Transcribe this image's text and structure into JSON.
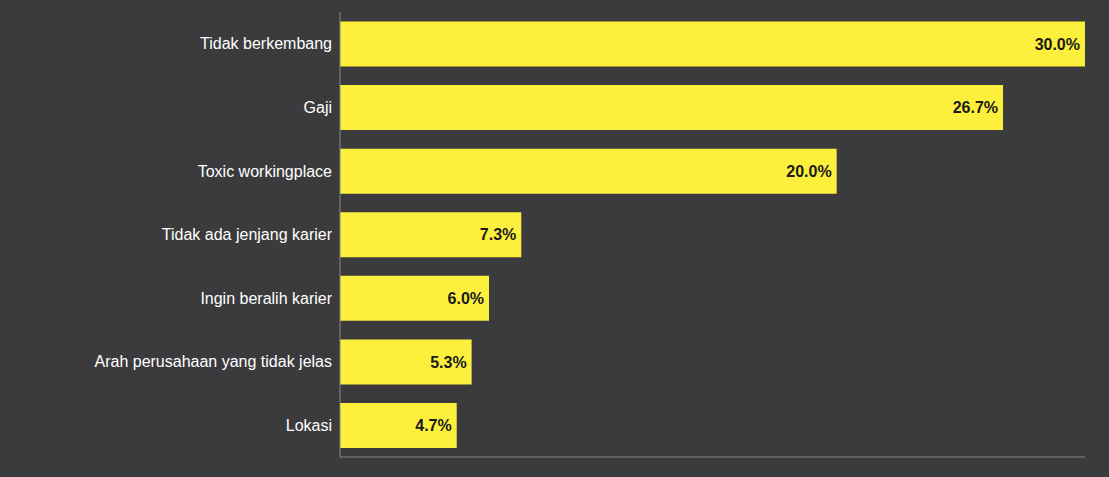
{
  "chart_data": {
    "type": "bar",
    "orientation": "horizontal",
    "categories": [
      "Tidak berkembang",
      "Gaji",
      "Toxic workingplace",
      "Tidak ada jenjang karier",
      "Ingin beralih karier",
      "Arah perusahaan yang tidak jelas",
      "Lokasi"
    ],
    "values": [
      30.0,
      26.7,
      20.0,
      7.3,
      6.0,
      5.3,
      4.7
    ],
    "value_labels": [
      "30.0%",
      "26.7%",
      "20.0%",
      "7.3%",
      "6.0%",
      "5.3%",
      "4.7%"
    ],
    "data_labels": true,
    "color": "#fdf03c",
    "xlim": [
      0,
      30
    ],
    "tick_labels": "y",
    "grid": false
  }
}
